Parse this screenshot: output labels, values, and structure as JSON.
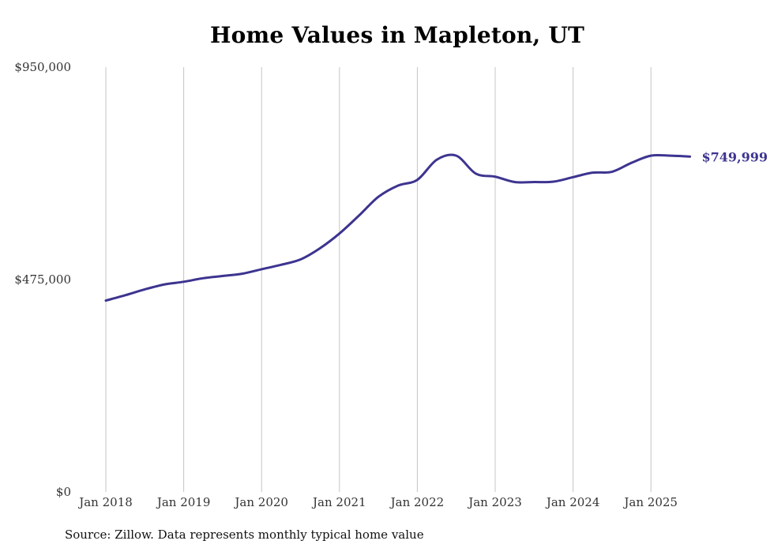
{
  "chart_data": {
    "type": "line",
    "title": "Home Values in Mapleton, UT",
    "xlabel": "",
    "ylabel": "",
    "ylim": [
      0,
      950000
    ],
    "y_ticks": [
      0,
      475000,
      950000
    ],
    "y_tick_labels": [
      "$0",
      "$475,000",
      "$950,000"
    ],
    "x_ticks": [
      "2018-01",
      "2019-01",
      "2020-01",
      "2021-01",
      "2022-01",
      "2023-01",
      "2024-01",
      "2025-01"
    ],
    "x_tick_labels": [
      "Jan 2018",
      "Jan 2019",
      "Jan 2020",
      "Jan 2021",
      "Jan 2022",
      "Jan 2023",
      "Jan 2024",
      "Jan 2025"
    ],
    "grid": "vertical",
    "series": [
      {
        "color": "#3d3490",
        "end_label": "$749,999",
        "x": [
          "2018-01",
          "2018-04",
          "2018-07",
          "2018-10",
          "2019-01",
          "2019-04",
          "2019-07",
          "2019-10",
          "2020-01",
          "2020-04",
          "2020-07",
          "2020-10",
          "2021-01",
          "2021-04",
          "2021-07",
          "2021-10",
          "2022-01",
          "2022-04",
          "2022-07",
          "2022-10",
          "2023-01",
          "2023-04",
          "2023-07",
          "2023-10",
          "2024-01",
          "2024-04",
          "2024-07",
          "2024-10",
          "2025-01",
          "2025-04",
          "2025-07"
        ],
        "y": [
          428000,
          440000,
          453000,
          464000,
          470000,
          478000,
          483000,
          488000,
          498000,
          508000,
          520000,
          545000,
          578000,
          618000,
          660000,
          685000,
          698000,
          743000,
          752000,
          712000,
          705000,
          693000,
          693000,
          694000,
          704000,
          714000,
          716000,
          736000,
          752000,
          752000,
          749999
        ]
      }
    ]
  },
  "source_note": "Source: Zillow. Data represents monthly typical home value"
}
